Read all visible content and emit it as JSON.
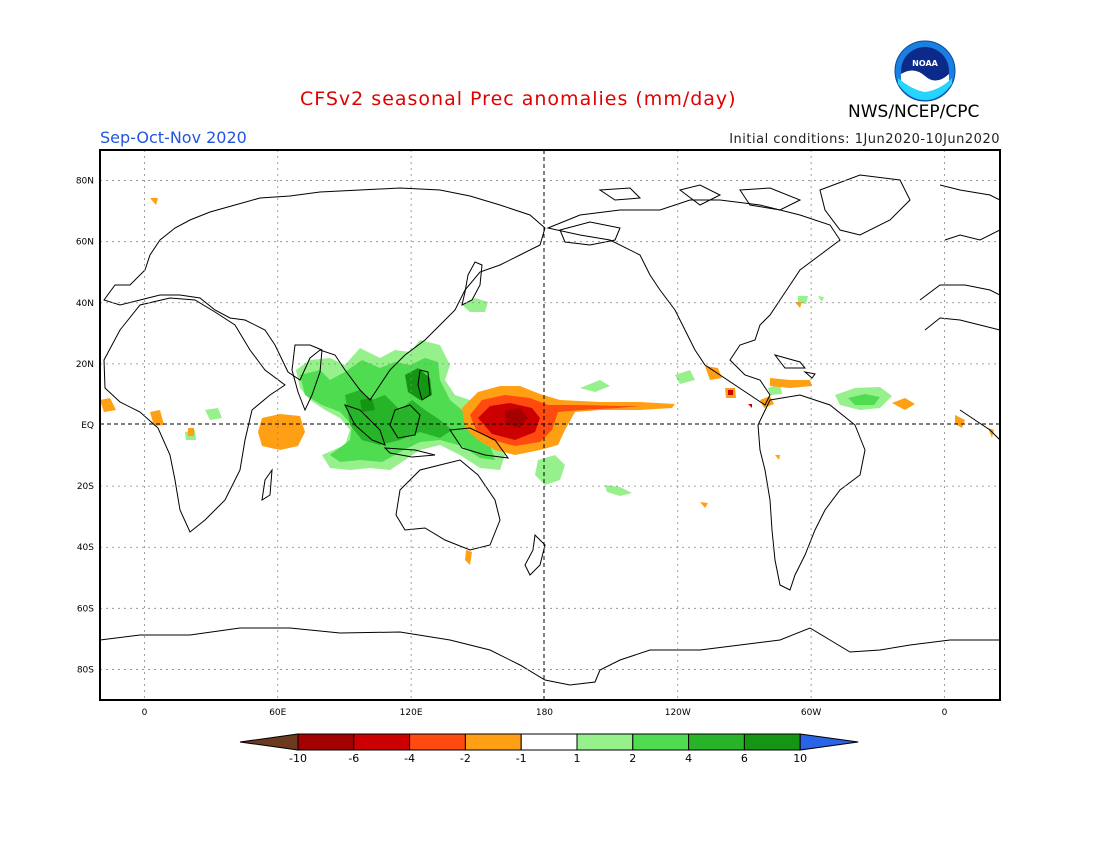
{
  "title": "CFSv2 seasonal Prec anomalies (mm/day)",
  "season": "Sep-Oct-Nov 2020",
  "initial_conditions": "Initial conditions: 1Jun2020-10Jun2020",
  "agency": "NWS/NCEP/CPC",
  "logo_text": "NOAA",
  "map": {
    "lat_labels": [
      "80N",
      "60N",
      "40N",
      "20N",
      "EQ",
      "20S",
      "40S",
      "60S",
      "80S"
    ],
    "lat_values": [
      80,
      60,
      40,
      20,
      0,
      -20,
      -40,
      -60,
      -80
    ],
    "lon_labels": [
      "0",
      "60E",
      "120E",
      "180",
      "120W",
      "60W",
      "0"
    ],
    "lon_values": [
      0,
      60,
      120,
      180,
      240,
      300,
      360
    ],
    "lon_range": [
      -20,
      385
    ],
    "lat_range": [
      -90,
      90
    ],
    "grid": "dotted",
    "dashed_lines": [
      "EQ",
      "180"
    ]
  },
  "colorbar": {
    "labels": [
      "-10",
      "-6",
      "-4",
      "-2",
      "-1",
      "1",
      "2",
      "4",
      "6",
      "10"
    ],
    "colors": [
      "#6b3a1f",
      "#a50000",
      "#cc0000",
      "#ff4a10",
      "#ffa014",
      "#ffffff",
      "#96f08c",
      "#50dc50",
      "#28b428",
      "#149614",
      "#2a64e6"
    ]
  },
  "chart_data": {
    "type": "heatmap",
    "variable": "Precipitation anomaly",
    "units": "mm/day",
    "regions": [
      {
        "lon": 158,
        "lat": 3,
        "anomaly": -6
      },
      {
        "lon": 175,
        "lat": 8,
        "anomaly": -2
      },
      {
        "lon": 66,
        "lat": -3,
        "anomaly": -2
      },
      {
        "lon": 120,
        "lat": 0,
        "anomaly": 2
      },
      {
        "lon": 100,
        "lat": 15,
        "anomaly": 2
      },
      {
        "lon": 90,
        "lat": -11,
        "anomaly": 2
      },
      {
        "lon": 180,
        "lat": -15,
        "anomaly": 1
      },
      {
        "lon": 308,
        "lat": 7,
        "anomaly": 1
      },
      {
        "lon": 338,
        "lat": 8,
        "anomaly": 1
      },
      {
        "lon": 346,
        "lat": 6,
        "anomaly": -2
      },
      {
        "lon": 5,
        "lat": 2,
        "anomaly": -2
      }
    ]
  }
}
